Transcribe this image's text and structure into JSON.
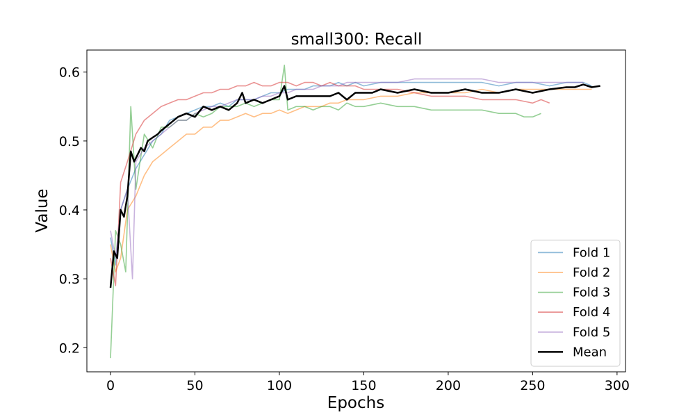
{
  "chart_data": {
    "type": "line",
    "title": "small300: Recall",
    "xlabel": "Epochs",
    "ylabel": "Value",
    "xlim": [
      -14,
      305
    ],
    "ylim": [
      0.165,
      0.632
    ],
    "xticks": [
      0,
      50,
      100,
      150,
      200,
      250,
      300
    ],
    "yticks": [
      0.2,
      0.3,
      0.4,
      0.5,
      0.6
    ],
    "ytick_labels": [
      "0.2",
      "0.3",
      "0.4",
      "0.5",
      "0.6"
    ],
    "grid": false,
    "legend_position": "bottom-right",
    "series": [
      {
        "name": "Fold 1",
        "color": "#1f77b4",
        "x": [
          0,
          3,
          6,
          10,
          15,
          20,
          25,
          30,
          35,
          40,
          45,
          50,
          55,
          60,
          65,
          70,
          75,
          80,
          85,
          90,
          95,
          100,
          105,
          110,
          115,
          120,
          125,
          130,
          135,
          140,
          145,
          150,
          160,
          170,
          180,
          190,
          200,
          210,
          220,
          230,
          240,
          250,
          260,
          270,
          280,
          285
        ],
        "y": [
          0.36,
          0.32,
          0.4,
          0.43,
          0.46,
          0.48,
          0.5,
          0.51,
          0.53,
          0.535,
          0.54,
          0.545,
          0.55,
          0.55,
          0.555,
          0.55,
          0.56,
          0.56,
          0.56,
          0.565,
          0.57,
          0.57,
          0.575,
          0.575,
          0.575,
          0.58,
          0.58,
          0.58,
          0.585,
          0.58,
          0.585,
          0.58,
          0.585,
          0.585,
          0.585,
          0.585,
          0.585,
          0.585,
          0.585,
          0.58,
          0.585,
          0.585,
          0.58,
          0.585,
          0.585,
          0.58
        ]
      },
      {
        "name": "Fold 2",
        "color": "#ff7f0e",
        "x": [
          0,
          3,
          6,
          10,
          15,
          20,
          25,
          30,
          35,
          40,
          45,
          50,
          55,
          60,
          65,
          70,
          75,
          80,
          85,
          90,
          95,
          100,
          105,
          110,
          115,
          120,
          125,
          130,
          135,
          140,
          145,
          150,
          160,
          170,
          180,
          190,
          200,
          210,
          220,
          230,
          240,
          250,
          260,
          270,
          280,
          285
        ],
        "y": [
          0.35,
          0.31,
          0.33,
          0.4,
          0.42,
          0.45,
          0.47,
          0.48,
          0.49,
          0.5,
          0.51,
          0.51,
          0.52,
          0.52,
          0.53,
          0.53,
          0.535,
          0.54,
          0.535,
          0.54,
          0.54,
          0.545,
          0.54,
          0.545,
          0.55,
          0.55,
          0.55,
          0.555,
          0.555,
          0.56,
          0.56,
          0.56,
          0.565,
          0.565,
          0.57,
          0.57,
          0.57,
          0.57,
          0.575,
          0.57,
          0.575,
          0.575,
          0.575,
          0.575,
          0.575,
          0.575
        ]
      },
      {
        "name": "Fold 3",
        "color": "#2ca02c",
        "x": [
          0,
          3,
          6,
          9,
          12,
          15,
          20,
          25,
          30,
          35,
          40,
          45,
          50,
          55,
          60,
          65,
          70,
          75,
          80,
          85,
          90,
          95,
          100,
          103,
          105,
          110,
          115,
          120,
          125,
          130,
          135,
          140,
          145,
          150,
          160,
          170,
          180,
          190,
          200,
          210,
          220,
          230,
          240,
          245,
          250,
          255
        ],
        "y": [
          0.185,
          0.37,
          0.35,
          0.31,
          0.55,
          0.43,
          0.51,
          0.49,
          0.52,
          0.52,
          0.53,
          0.53,
          0.54,
          0.535,
          0.54,
          0.55,
          0.55,
          0.55,
          0.555,
          0.55,
          0.555,
          0.56,
          0.56,
          0.61,
          0.545,
          0.55,
          0.55,
          0.545,
          0.55,
          0.55,
          0.545,
          0.555,
          0.55,
          0.55,
          0.555,
          0.55,
          0.55,
          0.545,
          0.545,
          0.545,
          0.545,
          0.54,
          0.54,
          0.535,
          0.535,
          0.54
        ]
      },
      {
        "name": "Fold 4",
        "color": "#d62728",
        "x": [
          0,
          3,
          6,
          10,
          15,
          20,
          25,
          30,
          35,
          40,
          45,
          50,
          55,
          60,
          65,
          70,
          75,
          80,
          85,
          90,
          95,
          100,
          105,
          110,
          115,
          120,
          125,
          130,
          135,
          140,
          145,
          150,
          160,
          170,
          180,
          190,
          200,
          210,
          220,
          230,
          240,
          250,
          255,
          260
        ],
        "y": [
          0.33,
          0.29,
          0.44,
          0.47,
          0.51,
          0.53,
          0.54,
          0.55,
          0.555,
          0.56,
          0.56,
          0.565,
          0.57,
          0.57,
          0.575,
          0.575,
          0.58,
          0.58,
          0.585,
          0.58,
          0.58,
          0.585,
          0.585,
          0.58,
          0.585,
          0.585,
          0.58,
          0.585,
          0.58,
          0.58,
          0.58,
          0.575,
          0.575,
          0.575,
          0.57,
          0.565,
          0.565,
          0.565,
          0.56,
          0.56,
          0.56,
          0.555,
          0.56,
          0.555
        ]
      },
      {
        "name": "Fold 5",
        "color": "#9467bd",
        "x": [
          0,
          3,
          6,
          10,
          13,
          15,
          20,
          25,
          30,
          35,
          40,
          45,
          50,
          55,
          60,
          65,
          70,
          75,
          80,
          85,
          90,
          95,
          100,
          105,
          110,
          115,
          120,
          125,
          130,
          135,
          140,
          145,
          150,
          160,
          170,
          180,
          190,
          200,
          210,
          220,
          230,
          240,
          250,
          260,
          270,
          280
        ],
        "y": [
          0.37,
          0.33,
          0.4,
          0.43,
          0.3,
          0.47,
          0.49,
          0.5,
          0.51,
          0.52,
          0.53,
          0.53,
          0.54,
          0.545,
          0.55,
          0.55,
          0.555,
          0.56,
          0.56,
          0.56,
          0.565,
          0.565,
          0.57,
          0.57,
          0.575,
          0.575,
          0.575,
          0.58,
          0.58,
          0.58,
          0.585,
          0.585,
          0.585,
          0.585,
          0.585,
          0.59,
          0.59,
          0.59,
          0.59,
          0.59,
          0.585,
          0.585,
          0.585,
          0.585,
          0.585,
          0.585
        ]
      },
      {
        "name": "Mean",
        "color": "#000000",
        "x": [
          0,
          2,
          4,
          6,
          8,
          10,
          12,
          14,
          16,
          18,
          20,
          22,
          25,
          28,
          30,
          35,
          40,
          45,
          50,
          55,
          60,
          65,
          70,
          75,
          78,
          80,
          85,
          90,
          95,
          100,
          103,
          105,
          110,
          115,
          120,
          125,
          130,
          135,
          140,
          145,
          150,
          155,
          160,
          170,
          180,
          190,
          200,
          210,
          220,
          230,
          240,
          250,
          260,
          270,
          275,
          280,
          285,
          290
        ],
        "y": [
          0.287,
          0.34,
          0.33,
          0.4,
          0.39,
          0.42,
          0.485,
          0.47,
          0.48,
          0.49,
          0.485,
          0.5,
          0.505,
          0.51,
          0.515,
          0.525,
          0.535,
          0.54,
          0.535,
          0.55,
          0.545,
          0.55,
          0.545,
          0.555,
          0.57,
          0.555,
          0.56,
          0.555,
          0.56,
          0.565,
          0.58,
          0.56,
          0.565,
          0.565,
          0.565,
          0.565,
          0.565,
          0.57,
          0.56,
          0.57,
          0.57,
          0.57,
          0.575,
          0.57,
          0.575,
          0.57,
          0.57,
          0.575,
          0.57,
          0.57,
          0.575,
          0.57,
          0.575,
          0.578,
          0.578,
          0.582,
          0.578,
          0.58
        ]
      }
    ]
  }
}
